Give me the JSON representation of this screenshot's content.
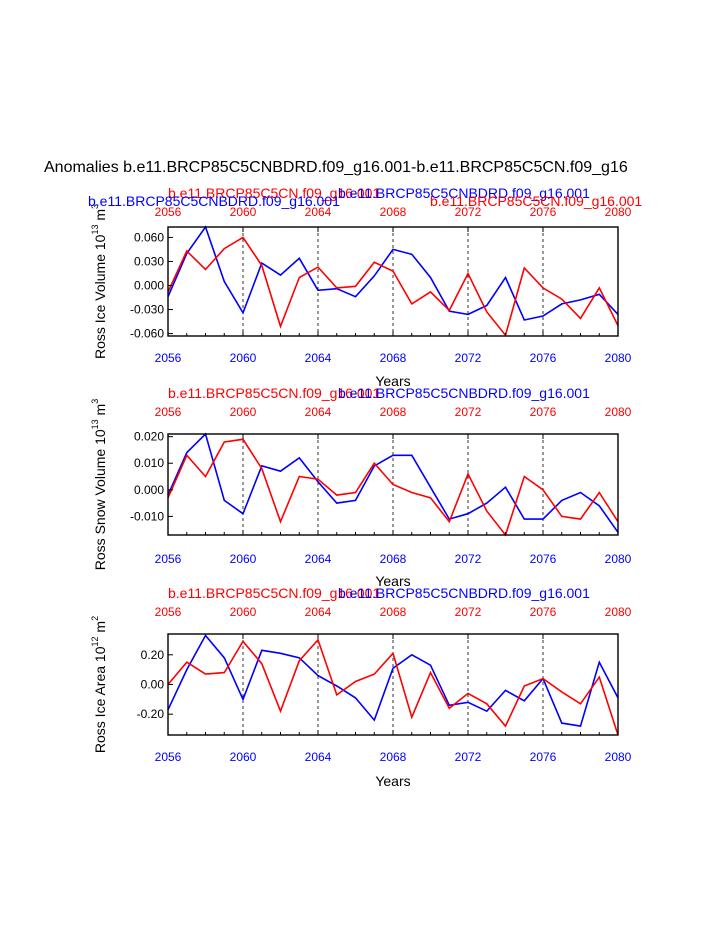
{
  "title": "Anomalies b.e11.BRCP85C5CNBDRD.f09_g16.001-b.e11.BRCP85C5CN.f09_g16",
  "colors": {
    "run_a": "#ff0000",
    "run_b": "#0000ff",
    "axis": "#000000"
  },
  "chart_data": [
    {
      "type": "line",
      "ylabel": "Ross Ice Volume 10",
      "ylabel_sup1": "13",
      "ylabel_unit": " m",
      "ylabel_sup2": "3",
      "xlabel": "Years",
      "xlim": [
        2056,
        2080
      ],
      "ylim": [
        -0.063,
        0.073
      ],
      "yticks": [
        -0.06,
        -0.03,
        0.0,
        0.03,
        0.06
      ],
      "ytick_labels": [
        "-0.060",
        "-0.030",
        "0.000",
        "0.030",
        "0.060"
      ],
      "xticks": [
        2056,
        2060,
        2064,
        2068,
        2072,
        2076,
        2080
      ],
      "xtick_labels": [
        "2056",
        "2060",
        "2064",
        "2068",
        "2072",
        "2076",
        "2080"
      ],
      "top_legend_red": "b.e11.BRCP85C5CN.f09_g16.001",
      "top_legend_blue": "b.e11.BRCP85C5CNBDRD.f09_g16.001",
      "title_red": "b.e11.BRCP85C5CN.f09_g16.001",
      "title_blue": "b.e11.BRCP85C5CNBDRD.f09_g16.001",
      "x": [
        2056,
        2057,
        2058,
        2059,
        2060,
        2061,
        2062,
        2063,
        2064,
        2065,
        2066,
        2067,
        2068,
        2069,
        2070,
        2071,
        2072,
        2073,
        2074,
        2075,
        2076,
        2077,
        2078,
        2079,
        2080
      ],
      "series": [
        {
          "name": "b.e11.BRCP85C5CNBDRD.f09_g16.001",
          "color": "#0000ff",
          "values": [
            -0.014,
            0.04,
            0.073,
            0.005,
            -0.034,
            0.028,
            0.013,
            0.034,
            -0.006,
            -0.004,
            -0.014,
            0.012,
            0.045,
            0.039,
            0.01,
            -0.032,
            -0.036,
            -0.025,
            0.01,
            -0.043,
            -0.038,
            -0.023,
            -0.018,
            -0.011,
            -0.036
          ]
        },
        {
          "name": "b.e11.BRCP85C5CN.f09_g16.001",
          "color": "#ff0000",
          "values": [
            -0.008,
            0.043,
            0.02,
            0.046,
            0.06,
            0.025,
            -0.051,
            0.01,
            0.023,
            -0.003,
            -0.001,
            0.029,
            0.018,
            -0.023,
            -0.008,
            -0.031,
            0.015,
            -0.033,
            -0.062,
            0.022,
            -0.003,
            -0.017,
            -0.041,
            -0.003,
            -0.05
          ]
        }
      ]
    },
    {
      "type": "line",
      "ylabel": "Ross Snow Volume 10",
      "ylabel_sup1": "13",
      "ylabel_unit": " m",
      "ylabel_sup2": "3",
      "xlabel": "Years",
      "xlim": [
        2056,
        2080
      ],
      "ylim": [
        -0.017,
        0.021
      ],
      "yticks": [
        -0.01,
        0.0,
        0.01,
        0.02
      ],
      "ytick_labels": [
        "-0.010",
        "0.000",
        "0.010",
        "0.020"
      ],
      "xticks": [
        2056,
        2060,
        2064,
        2068,
        2072,
        2076,
        2080
      ],
      "xtick_labels": [
        "2056",
        "2060",
        "2064",
        "2068",
        "2072",
        "2076",
        "2080"
      ],
      "top_legend_red": "",
      "top_legend_blue": "",
      "title_red": "b.e11.BRCP85C5CN.f09_g16.001",
      "title_blue": "b.e11.BRCP85C5CNBDRD.f09_g16.001",
      "x": [
        2056,
        2057,
        2058,
        2059,
        2060,
        2061,
        2062,
        2063,
        2064,
        2065,
        2066,
        2067,
        2068,
        2069,
        2070,
        2071,
        2072,
        2073,
        2074,
        2075,
        2076,
        2077,
        2078,
        2079,
        2080
      ],
      "series": [
        {
          "name": "b.e11.BRCP85C5CNBDRD.f09_g16.001",
          "color": "#0000ff",
          "values": [
            -0.002,
            0.014,
            0.021,
            -0.004,
            -0.009,
            0.009,
            0.007,
            0.012,
            0.003,
            -0.005,
            -0.004,
            0.009,
            0.013,
            0.013,
            0.001,
            -0.011,
            -0.009,
            -0.005,
            0.001,
            -0.011,
            -0.011,
            -0.004,
            -0.001,
            -0.006,
            -0.016
          ]
        },
        {
          "name": "b.e11.BRCP85C5CN.f09_g16.001",
          "color": "#ff0000",
          "values": [
            -0.003,
            0.013,
            0.005,
            0.018,
            0.019,
            0.008,
            -0.012,
            0.005,
            0.004,
            -0.002,
            -0.001,
            0.01,
            0.002,
            -0.001,
            -0.003,
            -0.012,
            0.006,
            -0.008,
            -0.017,
            0.005,
            0.0,
            -0.01,
            -0.011,
            -0.001,
            -0.012
          ]
        }
      ]
    },
    {
      "type": "line",
      "ylabel": "Ross Ice Area 10",
      "ylabel_sup1": "12",
      "ylabel_unit": " m",
      "ylabel_sup2": "2",
      "xlabel": "Years",
      "xlim": [
        2056,
        2080
      ],
      "ylim": [
        -0.34,
        0.34
      ],
      "yticks": [
        -0.2,
        0.0,
        0.2
      ],
      "ytick_labels": [
        "-0.20",
        "0.00",
        "0.20"
      ],
      "xticks": [
        2056,
        2060,
        2064,
        2068,
        2072,
        2076,
        2080
      ],
      "xtick_labels": [
        "2056",
        "2060",
        "2064",
        "2068",
        "2072",
        "2076",
        "2080"
      ],
      "top_legend_red": "",
      "top_legend_blue": "",
      "title_red": "b.e11.BRCP85C5CN.f09_g16.001",
      "title_blue": "b.e11.BRCP85C5CNBDRD.f09_g16.001",
      "x": [
        2056,
        2057,
        2058,
        2059,
        2060,
        2061,
        2062,
        2063,
        2064,
        2065,
        2066,
        2067,
        2068,
        2069,
        2070,
        2071,
        2072,
        2073,
        2074,
        2075,
        2076,
        2077,
        2078,
        2079,
        2080
      ],
      "series": [
        {
          "name": "b.e11.BRCP85C5CNBDRD.f09_g16.001",
          "color": "#0000ff",
          "values": [
            -0.17,
            0.1,
            0.33,
            0.18,
            -0.1,
            0.23,
            0.21,
            0.18,
            0.06,
            -0.01,
            -0.09,
            -0.24,
            0.11,
            0.2,
            0.13,
            -0.14,
            -0.12,
            -0.18,
            -0.04,
            -0.11,
            0.04,
            -0.26,
            -0.28,
            0.15,
            -0.09
          ]
        },
        {
          "name": "b.e11.BRCP85C5CN.f09_g16.001",
          "color": "#ff0000",
          "values": [
            0.0,
            0.15,
            0.07,
            0.08,
            0.29,
            0.14,
            -0.18,
            0.16,
            0.3,
            -0.07,
            0.02,
            0.07,
            0.21,
            -0.22,
            0.08,
            -0.16,
            -0.06,
            -0.13,
            -0.28,
            -0.01,
            0.04,
            -0.05,
            -0.13,
            0.05,
            -0.34
          ]
        }
      ]
    }
  ]
}
